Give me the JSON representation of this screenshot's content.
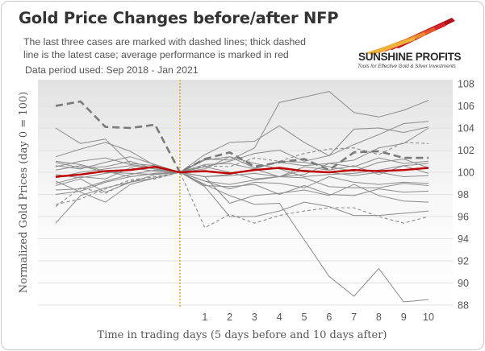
{
  "title": "Gold Price Changes before/after NFP",
  "subtitle": "The last three cases are marked with dashed lines; thick dashed line is the latest case; average performance is marked in red",
  "data_period": "Data period used: Sep 2018 - Jan 2021",
  "logo": {
    "name": "SUNSHINE PROFITS",
    "tagline": "Tools for Effective Gold & Silver Investments"
  },
  "colors": {
    "average": "#c00000",
    "cases": "#8c8c8c",
    "nfp_marker": "#c8a000"
  },
  "chart_data": {
    "type": "line",
    "title": "Gold Price Changes before/after NFP",
    "xlabel": "Time in trading days (5 days before and 10 days after)",
    "ylabel": "Normalized Gold Prices (day 0 = 100)",
    "x": [
      -5,
      -4,
      -3,
      -2,
      -1,
      0,
      1,
      2,
      3,
      4,
      5,
      6,
      7,
      8,
      9,
      10
    ],
    "x_tick_labels": [
      "1",
      "2",
      "3",
      "4",
      "5",
      "6",
      "7",
      "8",
      "9",
      "10"
    ],
    "ylim": [
      88,
      108
    ],
    "y_ticks": [
      88,
      90,
      92,
      94,
      96,
      98,
      100,
      102,
      104,
      106,
      108
    ],
    "y_axis_side": "right",
    "grid": true,
    "vertical_marker_x": 0,
    "series": [
      {
        "style": "average",
        "values": [
          99.6,
          99.8,
          100.1,
          100.2,
          100.5,
          100,
          100.1,
          99.9,
          100.2,
          100.4,
          100.1,
          100.0,
          100.2,
          100.1,
          100.2,
          100.4
        ]
      },
      {
        "style": "latest-dashed-thick",
        "values": [
          106,
          106.4,
          104.1,
          104.0,
          104.3,
          100,
          101.2,
          101.8,
          100.5,
          100.9,
          101.2,
          100.2,
          101.8,
          101.9,
          101.3,
          101.3
        ]
      },
      {
        "style": "dashed",
        "values": [
          96.9,
          98.6,
          98.1,
          99.2,
          99.4,
          100,
          95.0,
          96.2,
          95.4,
          96.1,
          96.5,
          96.8,
          96.8,
          96.0,
          95.4,
          96.0
        ]
      },
      {
        "style": "dashed",
        "values": [
          97.1,
          97.6,
          98.5,
          99.3,
          99.6,
          100,
          100.6,
          100.5,
          101.3,
          101.0,
          101.7,
          102.1,
          102.2,
          101.6,
          102.7,
          102.6
        ]
      },
      {
        "style": "solid",
        "values": [
          95.4,
          97.9,
          98.6,
          99.1,
          99.5,
          100,
          98.9,
          97.9,
          97.1,
          97.2,
          93.9,
          90.6,
          88.8,
          91.3,
          88.3,
          88.5
        ]
      },
      {
        "style": "solid",
        "values": [
          104,
          102.6,
          103.0,
          100.8,
          100.6,
          100,
          98.7,
          96.0,
          96.0,
          96.5,
          97.3,
          96.9,
          96.1,
          96.1,
          96.3,
          96.5
        ]
      },
      {
        "style": "solid",
        "values": [
          101.4,
          102.1,
          102.7,
          101.9,
          100.6,
          100,
          101.2,
          101.1,
          102.2,
          106.3,
          106.8,
          107.3,
          105.4,
          105.0,
          105.6,
          106.5
        ]
      },
      {
        "style": "solid",
        "values": [
          98.8,
          99.4,
          98.2,
          99.1,
          99.8,
          100,
          101.6,
          102.7,
          102.8,
          104.2,
          102.7,
          101.5,
          103.9,
          104.0,
          103.6,
          104.1
        ]
      },
      {
        "style": "solid",
        "values": [
          99.2,
          98.2,
          97.3,
          98.9,
          99.5,
          100,
          99.6,
          97.2,
          97.9,
          98.1,
          98.4,
          97.9,
          98.9,
          97.9,
          97.4,
          97.3
        ]
      },
      {
        "style": "solid",
        "values": [
          100.9,
          100.4,
          100.5,
          101.0,
          100.3,
          100,
          100.7,
          100.8,
          100.3,
          99.6,
          99.8,
          100.8,
          101.1,
          102.2,
          102.6,
          104.0
        ]
      },
      {
        "style": "solid",
        "values": [
          99.5,
          100.0,
          100.3,
          100.6,
          100.3,
          100,
          99.6,
          99.8,
          100.3,
          101.0,
          100.9,
          100.5,
          100.1,
          100.9,
          101.2,
          100.4
        ]
      },
      {
        "style": "solid",
        "values": [
          100.5,
          101.0,
          101.3,
          100.7,
          100.4,
          100,
          99.2,
          98.5,
          99.1,
          99.0,
          98.6,
          99.6,
          99.1,
          98.9,
          99.1,
          99.0
        ]
      },
      {
        "style": "solid",
        "values": [
          98.0,
          98.3,
          99.1,
          99.6,
          99.9,
          100,
          100.5,
          101.0,
          101.7,
          102.0,
          101.0,
          101.5,
          102.5,
          103.4,
          104.4,
          104.6
        ]
      },
      {
        "style": "solid",
        "values": [
          101.0,
          100.7,
          100.1,
          99.6,
          99.9,
          100,
          99.2,
          98.9,
          99.3,
          99.6,
          100.5,
          100.2,
          100.6,
          99.8,
          100.6,
          99.9
        ]
      },
      {
        "style": "solid",
        "values": [
          99.8,
          99.5,
          99.9,
          100.2,
          100.5,
          100,
          101.1,
          101.4,
          100.8,
          100.3,
          99.6,
          99.8,
          99.9,
          100.2,
          100.6,
          100.8
        ]
      },
      {
        "style": "solid",
        "values": [
          100.2,
          100.6,
          100.0,
          99.9,
          99.8,
          100,
          99.6,
          99.7,
          99.9,
          99.6,
          99.5,
          98.7,
          98.6,
          98.6,
          99.0,
          98.8
        ]
      },
      {
        "style": "solid",
        "values": [
          98.4,
          98.5,
          99.2,
          99.8,
          100.2,
          100,
          100.3,
          101.4,
          100.4,
          100.9,
          100.6,
          100.8,
          100.5,
          101.3,
          100.8,
          101.0
        ]
      },
      {
        "style": "solid",
        "values": [
          100.6,
          100.3,
          100.9,
          101.4,
          100.7,
          100,
          100.5,
          100.0,
          99.4,
          99.6,
          100.2,
          100.0,
          99.7,
          100.0,
          99.6,
          99.7
        ]
      },
      {
        "style": "solid",
        "values": [
          99.0,
          99.6,
          99.4,
          100.4,
          100.1,
          100,
          98.8,
          98.7,
          98.9,
          98.0,
          98.8,
          98.0,
          97.9,
          98.5,
          98.2,
          98.3
        ]
      }
    ]
  }
}
